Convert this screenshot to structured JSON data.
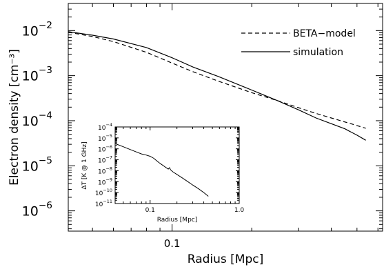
{
  "chart_data": [
    {
      "type": "line",
      "xlabel": "Radius [Mpc]",
      "ylabel": "Electron density [cm⁻³]",
      "xscale": "log",
      "yscale": "log",
      "xlim": [
        0.0405,
        0.625
      ],
      "ylim": [
        3.55e-07,
        0.04
      ],
      "x_ticks": [
        {
          "value": 0.1,
          "label": "0.1"
        }
      ],
      "y_ticks": [
        {
          "value": 0.01,
          "mant": "10",
          "exp": "−2"
        },
        {
          "value": 0.001,
          "mant": "10",
          "exp": "−3"
        },
        {
          "value": 0.0001,
          "mant": "10",
          "exp": "−4"
        },
        {
          "value": 1e-05,
          "mant": "10",
          "exp": "−5"
        },
        {
          "value": 1e-06,
          "mant": "10",
          "exp": "−6"
        }
      ],
      "legend_position": "top-right",
      "series": [
        {
          "name": "BETA−model",
          "style": "dashed",
          "x": [
            0.0405,
            0.05,
            0.06,
            0.08,
            0.1,
            0.12,
            0.15,
            0.2,
            0.25,
            0.3,
            0.35,
            0.4,
            0.47,
            0.54
          ],
          "y": [
            0.0092,
            0.0074,
            0.0057,
            0.0033,
            0.0019,
            0.00122,
            0.00075,
            0.00042,
            0.00028,
            0.000195,
            0.000145,
            0.000115,
            8.7e-05,
            6.8e-05
          ]
        },
        {
          "name": "simulation",
          "style": "solid",
          "x": [
            0.0405,
            0.05,
            0.06,
            0.08,
            0.1,
            0.12,
            0.15,
            0.2,
            0.25,
            0.3,
            0.35,
            0.4,
            0.45,
            0.5,
            0.54
          ],
          "y": [
            0.0095,
            0.0079,
            0.0065,
            0.0042,
            0.0025,
            0.00155,
            0.00095,
            0.00048,
            0.00028,
            0.000175,
            0.000115,
            8.58e-05,
            6.61e-05,
            4.78e-05,
            3.68e-05
          ]
        }
      ]
    },
    {
      "type": "line",
      "xlabel": "Radius [Mpc]",
      "ylabel": "ΔT [K @ 1 GHz]",
      "xscale": "log",
      "yscale": "log",
      "xlim": [
        0.0405,
        1.0
      ],
      "ylim": [
        1e-11,
        0.0001
      ],
      "x_ticks": [
        {
          "value": 0.1,
          "label": "0.1"
        },
        {
          "value": 1.0,
          "label": "1.0"
        }
      ],
      "y_ticks": [
        {
          "value": 0.0001,
          "mant": "10",
          "exp": "−4"
        },
        {
          "value": 1e-05,
          "mant": "10",
          "exp": "−5"
        },
        {
          "value": 1e-06,
          "mant": "10",
          "exp": "−6"
        },
        {
          "value": 1e-07,
          "mant": "10",
          "exp": "−7"
        },
        {
          "value": 1e-08,
          "mant": "10",
          "exp": "−8"
        },
        {
          "value": 1e-09,
          "mant": "10",
          "exp": "−9"
        },
        {
          "value": 1e-10,
          "mant": "10",
          "exp": "−10"
        },
        {
          "value": 1e-11,
          "mant": "10",
          "exp": "−11"
        }
      ],
      "series": [
        {
          "style": "solid",
          "x": [
            0.0405,
            0.05,
            0.06,
            0.07,
            0.08,
            0.09,
            0.1,
            0.11,
            0.12,
            0.13,
            0.14,
            0.15,
            0.16,
            0.165,
            0.17,
            0.18,
            0.2,
            0.23,
            0.26,
            0.3,
            0.35,
            0.4,
            0.45
          ],
          "y": [
            3e-06,
            1.55e-06,
            8.5e-07,
            5.2e-07,
            3.4e-07,
            2.7e-07,
            2.1e-07,
            1.35e-07,
            7.5e-08,
            4.5e-08,
            3e-08,
            2e-08,
            1.4e-08,
            1.9e-08,
            1.2e-08,
            8e-09,
            4.5e-09,
            2.2e-09,
            1.1e-09,
            5e-10,
            2.2e-10,
            1e-10,
            4.6e-11
          ]
        }
      ]
    }
  ]
}
